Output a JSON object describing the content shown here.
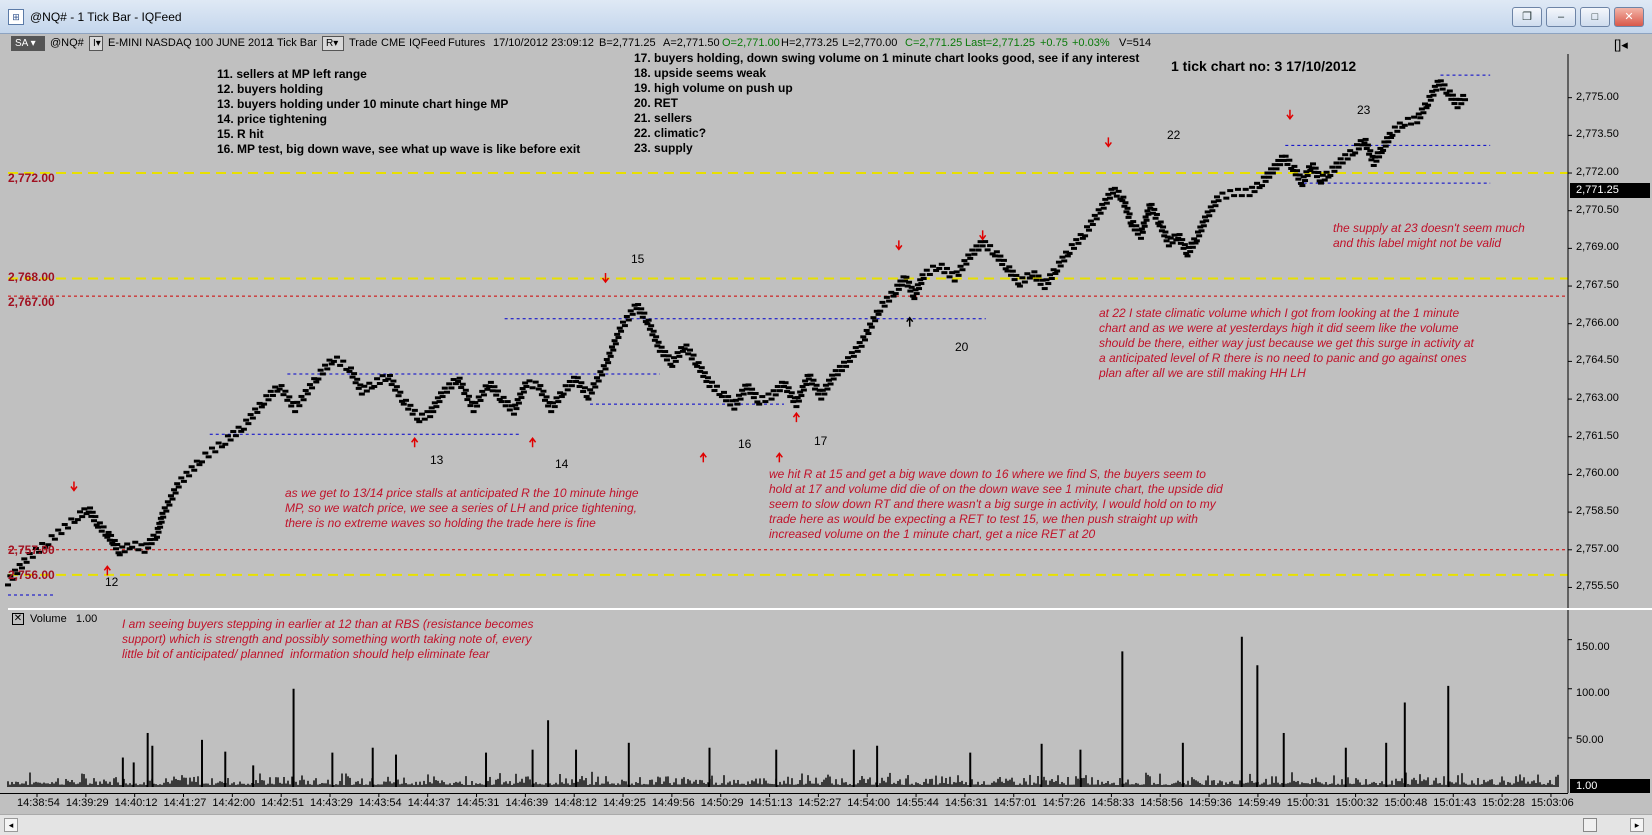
{
  "window": {
    "title": "@NQ# - 1 Tick Bar - IQFeed",
    "app_icon": "chart-window-icon",
    "buttons": [
      "restore-icon",
      "minimize-icon",
      "maximize-icon",
      "close-icon"
    ]
  },
  "toolbar": {
    "sa": "SA",
    "symbol": "@NQ#",
    "description": "E-MINI NASDAQ 100 JUNE 2012",
    "bar_type": "1 Tick Bar",
    "r_btn": "R",
    "trade": "Trade",
    "exchange": "CME",
    "feed": "IQFeed",
    "category": "Futures",
    "datetime": "17/10/2012  23:09:12",
    "bid": "B=2,771.25",
    "ask": "A=2,771.50",
    "open": "O=2,771.00",
    "high": "H=2,773.25",
    "low": "L=2,770.00",
    "close": "C=2,771.25",
    "last": "Last=2,771.25",
    "change": "+0.75",
    "change_pct": "+0.03%",
    "volume": "V=514"
  },
  "notes": {
    "left": "11. sellers at MP left range\n12. buyers holding\n13. buyers holding under 10 minute chart hinge MP\n14. price tightening\n15. R hit\n16. MP test, big down wave, see what up wave is like before exit",
    "right": "17. buyers holding, down swing volume on 1 minute chart looks good, see if any interest\n18. upside seems weak\n19. high volume on push up\n20. RET\n21. sellers\n22. climatic?\n23. supply",
    "title": "1 tick chart no: 3 17/10/2012",
    "red_1314": "as we get to 13/14 price stalls at anticipated R the 10 minute hinge\nMP, so we watch price, we see a series of LH and price tightening,\nthere is no extreme waves so holding the trade here is fine",
    "red_15": "we hit R at 15 and get a big wave down to 16 where we find S, the buyers seem to\nhold at 17 and volume did die of on the down wave see 1 minute chart, the upside did\nseem to slow down RT and there wasn't a big surge in activity, I would hold on to my\ntrade here as would be expecting a RET to test 15, we then push straight up with\nincreased volume on the 1 minute chart, get a nice RET at 20",
    "red_22": "at 22 I state climatic volume which I got from looking at the 1 minute\nchart and as we were at yesterdays high it did seem like the volume\nshould be there, either way just because we get this surge in activity at\na anticipated level of R there is no need to panic and go against ones\nplan after all we are still making HH LH",
    "red_23": "the supply at 23 doesn't seem much\nand this label might not be valid",
    "red_vol": "I am seeing buyers stepping in earlier at 12 than at RBS (resistance becomes\nsupport) which is strength and possibly something worth taking note of, every\nlittle bit of anticipated/ planned  information should help eliminate fear"
  },
  "levels": {
    "l2772": "2,772.00",
    "l2768": "2,768.00",
    "l2767": "2,767.00",
    "l2757": "2,757.00",
    "l2756": "2,756.00"
  },
  "labels": {
    "n12": "12",
    "n13": "13",
    "n14": "14",
    "n15": "15",
    "n16": "16",
    "n17": "17",
    "n20": "20",
    "n22": "22",
    "n23": "23"
  },
  "price_axis": [
    "2,775.00",
    "2,773.50",
    "2,772.00",
    "2,770.50",
    "2,769.00",
    "2,767.50",
    "2,766.00",
    "2,764.50",
    "2,763.00",
    "2,761.50",
    "2,760.00",
    "2,758.50",
    "2,757.00",
    "2,755.50"
  ],
  "last_price": "2,771.25",
  "volume_panel": {
    "label": "Volume",
    "scale": "1.00",
    "axis": [
      "150.00",
      "100.00",
      "50.00"
    ],
    "last": "1.00"
  },
  "time_axis": [
    "14:38:54",
    "14:39:29",
    "14:40:12",
    "14:41:27",
    "14:42:00",
    "14:42:51",
    "14:43:29",
    "14:43:54",
    "14:44:37",
    "14:45:31",
    "14:46:39",
    "14:48:12",
    "14:49:25",
    "14:49:56",
    "14:50:29",
    "14:51:13",
    "14:52:27",
    "14:54:00",
    "14:55:44",
    "14:56:31",
    "14:57:01",
    "14:57:26",
    "14:58:33",
    "14:58:56",
    "14:59:36",
    "14:59:49",
    "15:00:31",
    "15:00:32",
    "15:00:48",
    "15:01:43",
    "15:02:28",
    "15:03:06"
  ],
  "colors": {
    "price": "#000000",
    "annotation": "#c0122a",
    "arrow_red": "#e00000",
    "dash_blue": "#0000cc",
    "dash_red": "#d00000",
    "dash_yellow": "#e8e000"
  },
  "chart_data": {
    "type": "scatter",
    "price_path": [
      [
        0,
        2755.7
      ],
      [
        0.012,
        2756.6
      ],
      [
        0.026,
        2757.3
      ],
      [
        0.045,
        2758.3
      ],
      [
        0.052,
        2758.6
      ],
      [
        0.058,
        2758.0
      ],
      [
        0.064,
        2757.6
      ],
      [
        0.068,
        2757.3
      ],
      [
        0.072,
        2756.9
      ],
      [
        0.08,
        2757.2
      ],
      [
        0.088,
        2757.0
      ],
      [
        0.096,
        2757.6
      ],
      [
        0.1,
        2758.4
      ],
      [
        0.11,
        2759.6
      ],
      [
        0.125,
        2760.6
      ],
      [
        0.14,
        2761.3
      ],
      [
        0.152,
        2761.9
      ],
      [
        0.165,
        2762.9
      ],
      [
        0.175,
        2763.5
      ],
      [
        0.185,
        2762.6
      ],
      [
        0.2,
        2763.9
      ],
      [
        0.21,
        2764.6
      ],
      [
        0.22,
        2764.2
      ],
      [
        0.228,
        2763.3
      ],
      [
        0.236,
        2763.6
      ],
      [
        0.245,
        2763.9
      ],
      [
        0.255,
        2762.9
      ],
      [
        0.265,
        2762.2
      ],
      [
        0.272,
        2762.4
      ],
      [
        0.28,
        2763.2
      ],
      [
        0.29,
        2763.8
      ],
      [
        0.3,
        2762.6
      ],
      [
        0.31,
        2763.6
      ],
      [
        0.318,
        2763.0
      ],
      [
        0.326,
        2762.5
      ],
      [
        0.334,
        2763.6
      ],
      [
        0.342,
        2763.5
      ],
      [
        0.35,
        2762.6
      ],
      [
        0.358,
        2763.3
      ],
      [
        0.366,
        2763.8
      ],
      [
        0.374,
        2763.1
      ],
      [
        0.385,
        2764.3
      ],
      [
        0.395,
        2765.8
      ],
      [
        0.405,
        2766.7
      ],
      [
        0.412,
        2766.1
      ],
      [
        0.42,
        2765.0
      ],
      [
        0.428,
        2764.4
      ],
      [
        0.436,
        2765.1
      ],
      [
        0.444,
        2764.4
      ],
      [
        0.452,
        2763.6
      ],
      [
        0.46,
        2763.2
      ],
      [
        0.468,
        2762.7
      ],
      [
        0.476,
        2763.5
      ],
      [
        0.484,
        2762.9
      ],
      [
        0.492,
        2763.1
      ],
      [
        0.5,
        2763.6
      ],
      [
        0.508,
        2762.8
      ],
      [
        0.516,
        2763.9
      ],
      [
        0.524,
        2763.1
      ],
      [
        0.532,
        2763.9
      ],
      [
        0.54,
        2764.4
      ],
      [
        0.55,
        2765.2
      ],
      [
        0.562,
        2766.6
      ],
      [
        0.572,
        2767.3
      ],
      [
        0.578,
        2767.8
      ],
      [
        0.584,
        2767.1
      ],
      [
        0.59,
        2767.9
      ],
      [
        0.6,
        2768.3
      ],
      [
        0.61,
        2767.8
      ],
      [
        0.62,
        2768.7
      ],
      [
        0.628,
        2769.2
      ],
      [
        0.636,
        2768.8
      ],
      [
        0.644,
        2768.2
      ],
      [
        0.652,
        2767.6
      ],
      [
        0.66,
        2768.0
      ],
      [
        0.668,
        2767.5
      ],
      [
        0.676,
        2768.2
      ],
      [
        0.684,
        2768.9
      ],
      [
        0.694,
        2769.6
      ],
      [
        0.704,
        2770.5
      ],
      [
        0.712,
        2771.3
      ],
      [
        0.718,
        2771.0
      ],
      [
        0.724,
        2770.0
      ],
      [
        0.73,
        2769.5
      ],
      [
        0.736,
        2770.7
      ],
      [
        0.742,
        2770.0
      ],
      [
        0.748,
        2769.2
      ],
      [
        0.754,
        2769.5
      ],
      [
        0.76,
        2768.8
      ],
      [
        0.766,
        2769.4
      ],
      [
        0.772,
        2770.2
      ],
      [
        0.78,
        2771.0
      ],
      [
        0.79,
        2771.2
      ],
      [
        0.8,
        2771.2
      ],
      [
        0.808,
        2771.6
      ],
      [
        0.815,
        2772.1
      ],
      [
        0.822,
        2772.6
      ],
      [
        0.828,
        2772.2
      ],
      [
        0.834,
        2771.6
      ],
      [
        0.84,
        2772.3
      ],
      [
        0.846,
        2771.7
      ],
      [
        0.852,
        2772.0
      ],
      [
        0.86,
        2772.5
      ],
      [
        0.868,
        2772.9
      ],
      [
        0.874,
        2773.3
      ],
      [
        0.88,
        2772.4
      ],
      [
        0.886,
        2773.0
      ],
      [
        0.892,
        2773.6
      ],
      [
        0.9,
        2774.0
      ],
      [
        0.908,
        2774.1
      ],
      [
        0.915,
        2774.8
      ],
      [
        0.922,
        2775.6
      ],
      [
        0.928,
        2775.2
      ],
      [
        0.934,
        2774.7
      ],
      [
        0.94,
        2775.1
      ]
    ],
    "volume_spikes": [
      [
        0.074,
        30
      ],
      [
        0.081,
        25
      ],
      [
        0.09,
        55
      ],
      [
        0.093,
        42
      ],
      [
        0.125,
        48
      ],
      [
        0.14,
        36
      ],
      [
        0.158,
        22
      ],
      [
        0.184,
        100
      ],
      [
        0.209,
        35
      ],
      [
        0.235,
        40
      ],
      [
        0.25,
        33
      ],
      [
        0.308,
        35
      ],
      [
        0.338,
        38
      ],
      [
        0.348,
        68
      ],
      [
        0.366,
        38
      ],
      [
        0.4,
        45
      ],
      [
        0.452,
        40
      ],
      [
        0.495,
        38
      ],
      [
        0.545,
        38
      ],
      [
        0.56,
        42
      ],
      [
        0.62,
        35
      ],
      [
        0.666,
        44
      ],
      [
        0.691,
        38
      ],
      [
        0.718,
        138
      ],
      [
        0.757,
        45
      ],
      [
        0.795,
        153
      ],
      [
        0.805,
        124
      ],
      [
        0.822,
        55
      ],
      [
        0.862,
        40
      ],
      [
        0.888,
        45
      ],
      [
        0.9,
        86
      ],
      [
        0.928,
        103
      ]
    ],
    "ylim": [
      2755.0,
      2776.5
    ],
    "volume_ylim": [
      0,
      170
    ]
  }
}
